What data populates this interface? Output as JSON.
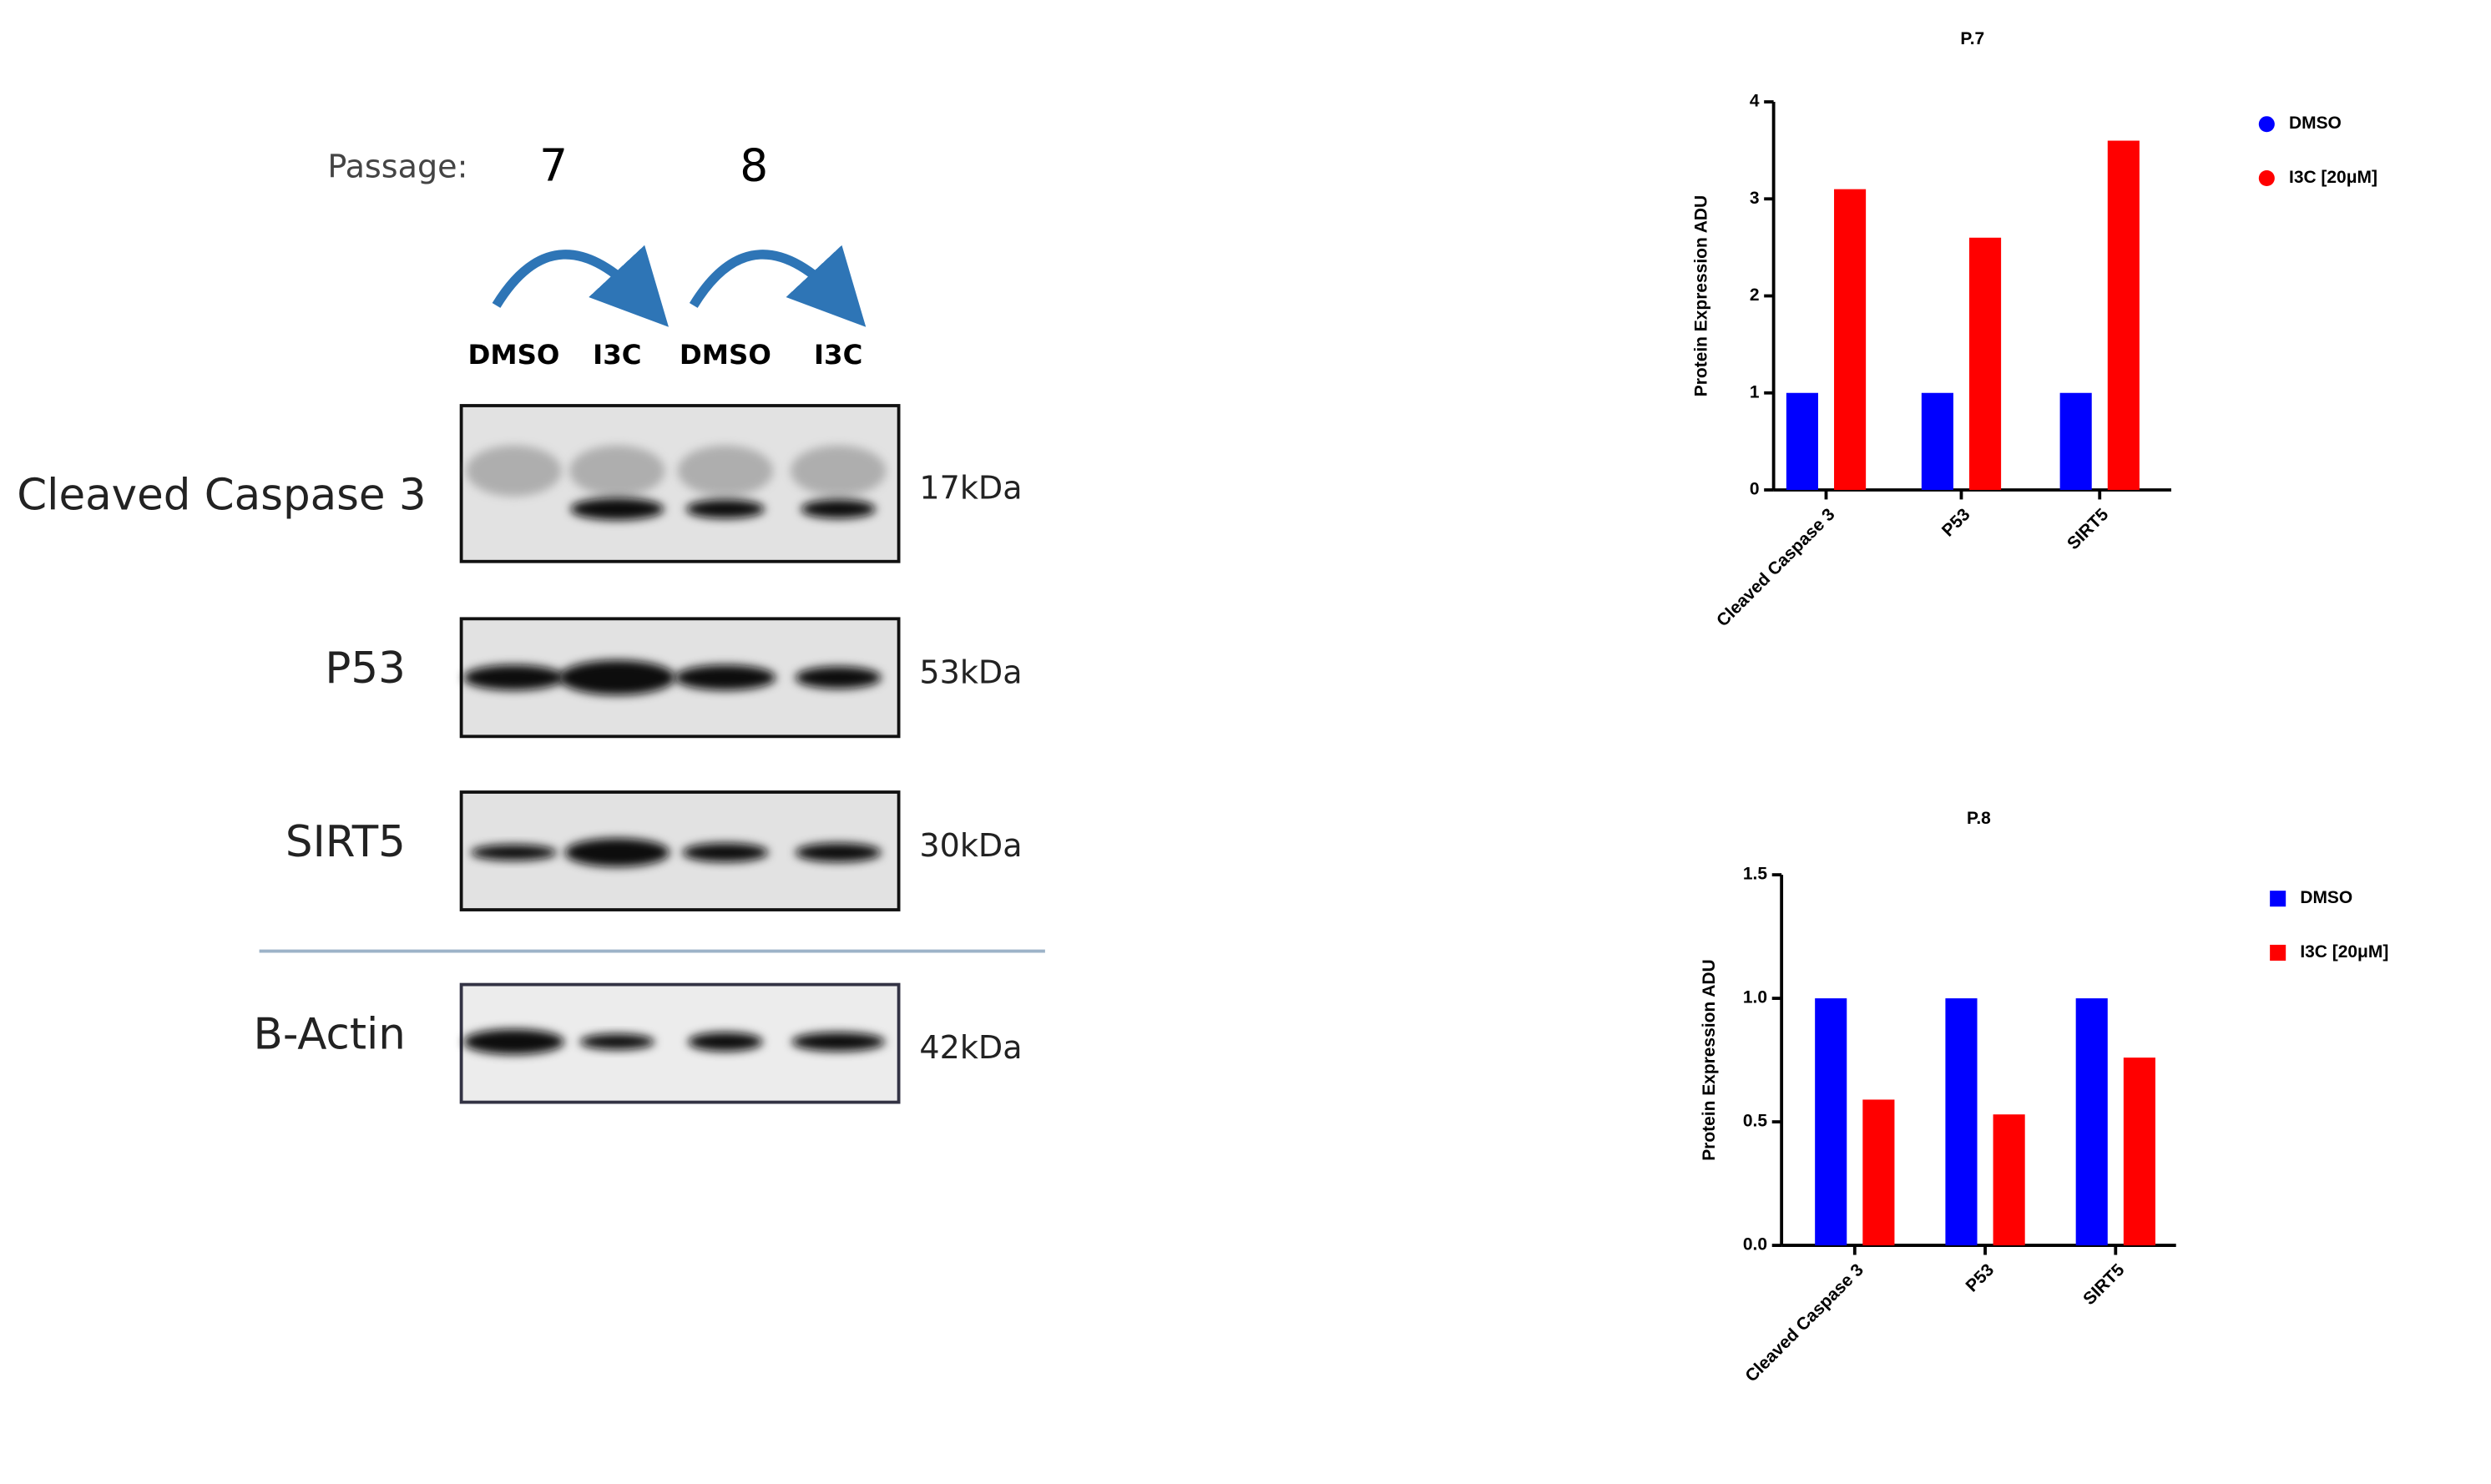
{
  "blot": {
    "passage_label": "Passage:",
    "passages": [
      "7",
      "8"
    ],
    "lanes": [
      "DMSO",
      "I3C",
      "DMSO",
      "I3C"
    ],
    "rows": [
      {
        "label": "Cleaved Caspase 3",
        "size": "17kDa"
      },
      {
        "label": "P53",
        "size": "53kDa"
      },
      {
        "label": "SIRT5",
        "size": "30kDa"
      },
      {
        "label": "B-Actin",
        "size": "42kDa"
      }
    ]
  },
  "chart_data": [
    {
      "type": "bar",
      "title": "P.7",
      "y_label": "Protein Expression ADU",
      "categories": [
        "Cleaved Caspase 3",
        "P53",
        "SIRT5"
      ],
      "series": [
        {
          "name": "DMSO",
          "color": "#0000ff",
          "values": [
            1,
            1,
            1
          ]
        },
        {
          "name": "I3C [20μM]",
          "color": "#ff0000",
          "values": [
            3.1,
            2.6,
            3.6
          ]
        }
      ],
      "ylim": [
        0,
        4
      ],
      "yticks": [
        0,
        1,
        2,
        3,
        4
      ],
      "legend_marker": "circle"
    },
    {
      "type": "bar",
      "title": "P.8",
      "y_label": "Protein Expression ADU",
      "categories": [
        "Cleaved Caspase 3",
        "P53",
        "SIRT5"
      ],
      "series": [
        {
          "name": "DMSO",
          "color": "#0000ff",
          "values": [
            1,
            1,
            1
          ]
        },
        {
          "name": "I3C [20μM]",
          "color": "#ff0000",
          "values": [
            0.59,
            0.53,
            0.76
          ]
        }
      ],
      "ylim": [
        0,
        1.5
      ],
      "yticks": [
        {
          "value": 0,
          "label": "0.0"
        },
        {
          "value": 0.5,
          "label": "0.5"
        },
        {
          "value": 1,
          "label": "1.0"
        },
        {
          "value": 1.5,
          "label": "1.5"
        }
      ],
      "legend_marker": "square"
    }
  ]
}
